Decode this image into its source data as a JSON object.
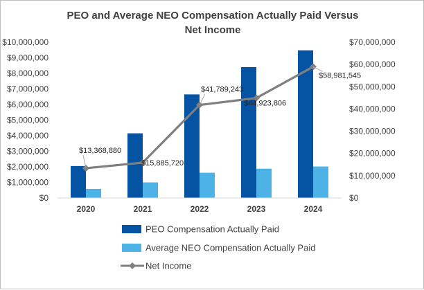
{
  "chart_data": {
    "type": "bar",
    "title_lines": [
      "PEO and Average NEO Compensation Actually Paid Versus",
      "Net Income"
    ],
    "categories": [
      "2020",
      "2021",
      "2022",
      "2023",
      "2024"
    ],
    "series": [
      {
        "name": "PEO Compensation Actually Paid",
        "kind": "bar",
        "axis": "left",
        "color": "#0553a3",
        "values": [
          2050000,
          4150000,
          6650000,
          8400000,
          9480000
        ]
      },
      {
        "name": "Average NEO Compensation Actually Paid",
        "kind": "bar",
        "axis": "left",
        "color": "#4db3e6",
        "values": [
          580000,
          1000000,
          1620000,
          1880000,
          2020000
        ]
      },
      {
        "name": "Net Income",
        "kind": "line",
        "axis": "right",
        "color": "#7f7f7f",
        "values": [
          13368880,
          15885720,
          41789243,
          44923806,
          58981545
        ],
        "data_labels": [
          "$13,368,880",
          "$15,885,720",
          "$41,789,243",
          "$44,923,806",
          "$58,981,545"
        ]
      }
    ],
    "y_left": {
      "ylim": [
        0,
        10000000
      ],
      "ticks": [
        0,
        1000000,
        2000000,
        3000000,
        4000000,
        5000000,
        6000000,
        7000000,
        8000000,
        9000000,
        10000000
      ],
      "tick_labels": [
        "$0",
        "$1,000,000",
        "$2,000,000",
        "$3,000,000",
        "$4,000,000",
        "$5,000,000",
        "$6,000,000",
        "$7,000,000",
        "$8,000,000",
        "$9,000,000",
        "$10,000,000"
      ]
    },
    "y_right": {
      "ylim": [
        0,
        70000000
      ],
      "ticks": [
        0,
        10000000,
        20000000,
        30000000,
        40000000,
        50000000,
        60000000,
        70000000
      ],
      "tick_labels": [
        "$0",
        "$10,000,000",
        "$20,000,000",
        "$30,000,000",
        "$40,000,000",
        "$50,000,000",
        "$60,000,000",
        "$70,000,000"
      ]
    },
    "grid": false,
    "legend_position": "bottom",
    "text_color": "#404040"
  }
}
